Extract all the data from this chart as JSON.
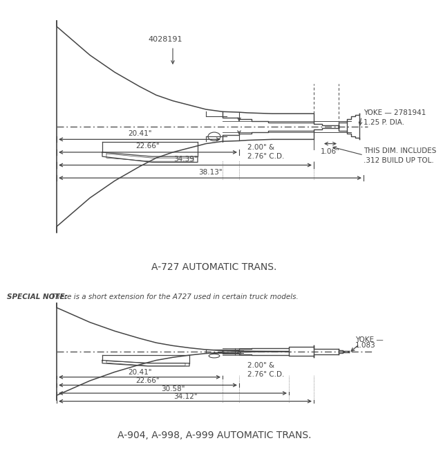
{
  "bg_color": "#ffffff",
  "line_color": "#444444",
  "title1": "A-727 AUTOMATIC TRANS.",
  "title2": "A-904, A-998, A-999 AUTOMATIC TRANS.",
  "special_note_bold": "SPECIAL NOTE:",
  "special_note_rest": "  There is a short extension for the A727 used in certain truck models.",
  "part_num_727": "4028191",
  "yoke_727_line1": "YOKE — 2781941",
  "yoke_727_line2": "1.25 P. DIA.",
  "dim_cd": "2.00\" &\n2.76\" C.D.",
  "dim_106": "1.06\"",
  "dim_note_line1": "THIS DIM. INCLUDES",
  "dim_note_line2": ".312 BUILD UP TOL.",
  "dim_2041": "20.41\"",
  "dim_2266": "22.66\"",
  "dim_3439": "34.39\"",
  "dim_3813": "38.13\"",
  "yoke_904_line1": "YOKE —",
  "yoke_904_line2": "1.083",
  "dim_cd_904": "2.00\" &\n2.76\" C.D.",
  "dim_2041b": "20.41\"",
  "dim_2266b": "22.66\"",
  "dim_3058": "30.58\"",
  "dim_3412": "34.12\""
}
